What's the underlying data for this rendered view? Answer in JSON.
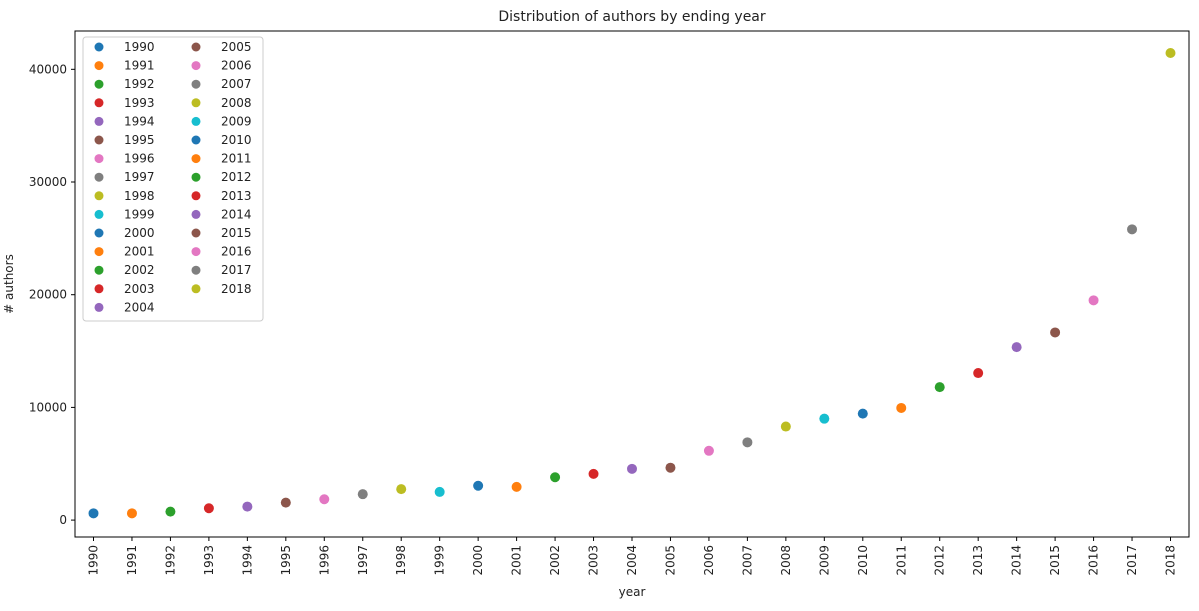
{
  "chart_data": {
    "type": "scatter",
    "title": "Distribution of authors by ending year",
    "xlabel": "year",
    "ylabel": "# authors",
    "ylim": [
      -1500,
      43400
    ],
    "yticks": [
      0,
      10000,
      20000,
      30000,
      40000
    ],
    "grid": false,
    "legend_position": "top-left",
    "legend_columns": 2,
    "x": [
      "1990",
      "1991",
      "1992",
      "1993",
      "1994",
      "1995",
      "1996",
      "1997",
      "1998",
      "1999",
      "2000",
      "2001",
      "2002",
      "2003",
      "2004",
      "2005",
      "2006",
      "2007",
      "2008",
      "2009",
      "2010",
      "2011",
      "2012",
      "2013",
      "2014",
      "2015",
      "2016",
      "2017",
      "2018"
    ],
    "values": [
      600,
      600,
      750,
      1050,
      1200,
      1550,
      1850,
      2300,
      2750,
      2500,
      3050,
      2950,
      3800,
      4100,
      4550,
      4650,
      6150,
      6900,
      8300,
      9000,
      9450,
      9950,
      11800,
      13050,
      15350,
      16650,
      19500,
      25800,
      41450
    ],
    "colors": [
      "#1f77b4",
      "#ff7f0e",
      "#2ca02c",
      "#d62728",
      "#9467bd",
      "#8c564b",
      "#e377c2",
      "#7f7f7f",
      "#bcbd22",
      "#17becf",
      "#1f77b4",
      "#ff7f0e",
      "#2ca02c",
      "#d62728",
      "#9467bd",
      "#8c564b",
      "#e377c2",
      "#7f7f7f",
      "#bcbd22",
      "#17becf",
      "#1f77b4",
      "#ff7f0e",
      "#2ca02c",
      "#d62728",
      "#9467bd",
      "#8c564b",
      "#e377c2",
      "#7f7f7f",
      "#bcbd22"
    ]
  }
}
